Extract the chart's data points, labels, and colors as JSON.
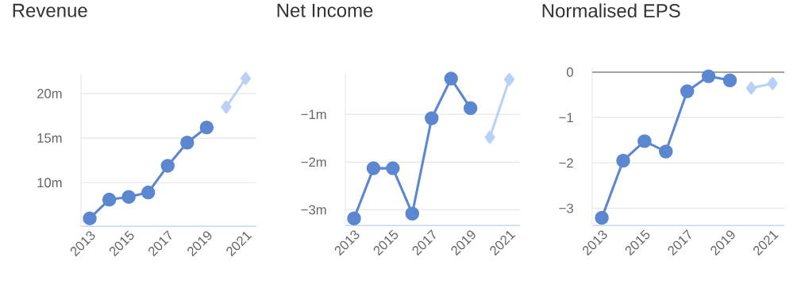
{
  "chart_data": [
    {
      "type": "line",
      "title": "Revenue",
      "xlim": [
        2012.55,
        2021.55
      ],
      "xticks": [
        2013,
        2015,
        2017,
        2019,
        2021
      ],
      "ylim": [
        5.1,
        22.2
      ],
      "yticks": [
        {
          "value": 10,
          "label": "10m"
        },
        {
          "value": 15,
          "label": "15m"
        },
        {
          "value": 20,
          "label": "20m"
        }
      ],
      "grid": "y",
      "series": [
        {
          "x": [
            2013,
            2014,
            2015,
            2016,
            2017,
            2018,
            2019
          ],
          "values": [
            6.0,
            8.1,
            8.4,
            8.9,
            11.9,
            14.5,
            16.2
          ],
          "color": "#5b87d0",
          "marker": "circle"
        },
        {
          "x": [
            2020,
            2021
          ],
          "values": [
            18.5,
            21.7
          ],
          "color": "#b8d1f5",
          "marker": "diamond"
        }
      ]
    },
    {
      "type": "line",
      "title": "Net Income",
      "xlim": [
        2012.55,
        2021.55
      ],
      "xticks": [
        2013,
        2015,
        2017,
        2019,
        2021
      ],
      "ylim": [
        -3.33,
        -0.12
      ],
      "yticks": [
        {
          "value": -3,
          "label": "−3m"
        },
        {
          "value": -2,
          "label": "−2m"
        },
        {
          "value": -1,
          "label": "−1m"
        }
      ],
      "grid": "y",
      "series": [
        {
          "x": [
            2013,
            2014,
            2015,
            2016,
            2017,
            2018,
            2019
          ],
          "values": [
            -3.18,
            -2.13,
            -2.13,
            -3.08,
            -1.08,
            -0.25,
            -0.87
          ],
          "color": "#5b87d0",
          "marker": "circle"
        },
        {
          "x": [
            2020,
            2021
          ],
          "values": [
            -1.48,
            -0.27
          ],
          "color": "#b8d1f5",
          "marker": "diamond"
        }
      ]
    },
    {
      "type": "line",
      "title": "Normalised EPS",
      "xlim": [
        2012.55,
        2021.55
      ],
      "xticks": [
        2013,
        2015,
        2017,
        2019,
        2021
      ],
      "ylim": [
        -3.38,
        0.1
      ],
      "yticks": [
        {
          "value": -3,
          "label": "−3"
        },
        {
          "value": -2,
          "label": "−2"
        },
        {
          "value": -1,
          "label": "−1"
        },
        0
      ],
      "grid": "y",
      "ref_lines": [
        {
          "axis": "y",
          "value": 0,
          "color": "#888888"
        }
      ],
      "series": [
        {
          "x": [
            2013,
            2014,
            2015,
            2016,
            2017,
            2018,
            2019
          ],
          "values": [
            -3.21,
            -1.95,
            -1.52,
            -1.75,
            -0.42,
            -0.09,
            -0.18
          ],
          "color": "#5b87d0",
          "marker": "circle"
        },
        {
          "x": [
            2020,
            2021
          ],
          "values": [
            -0.35,
            -0.25
          ],
          "color": "#b8d1f5",
          "marker": "diamond"
        }
      ]
    }
  ]
}
